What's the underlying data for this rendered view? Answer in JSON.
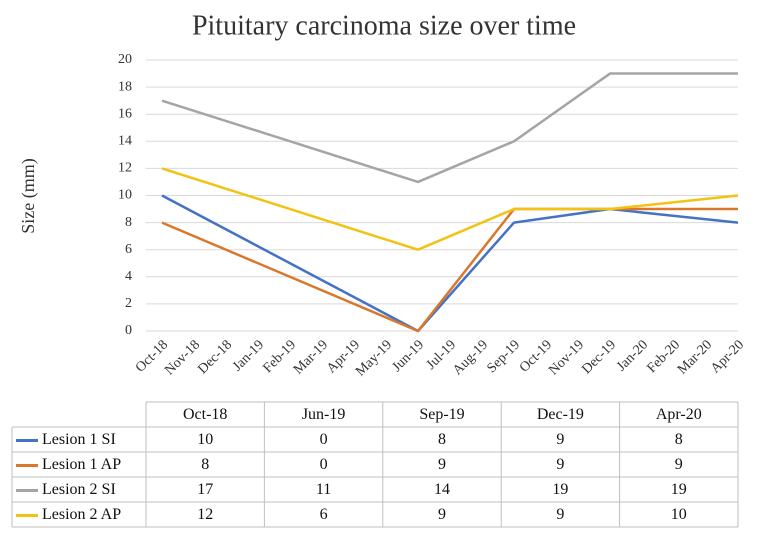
{
  "chart_data": {
    "type": "line",
    "title": "Pituitary carcinoma size over time",
    "y_label": "Size (mm)",
    "xticks": [
      "Oct-18",
      "Nov-18",
      "Dec-18",
      "Jan-19",
      "Feb-19",
      "Mar-19",
      "Apr-19",
      "May-19",
      "Jun-19",
      "Jul-19",
      "Aug-19",
      "Sep-19",
      "Oct-19",
      "Nov-19",
      "Dec-19",
      "Jan-20",
      "Feb-20",
      "Mar-20",
      "Apr-20"
    ],
    "x": [
      "Oct-18",
      "Jun-19",
      "Sep-19",
      "Dec-19",
      "Apr-20"
    ],
    "series": [
      {
        "name": "Lesion 1 SI",
        "color": "#4472c4",
        "values": [
          10,
          0,
          8,
          9,
          8
        ]
      },
      {
        "name": "Lesion 1 AP",
        "color": "#d9782d",
        "values": [
          8,
          0,
          9,
          9,
          9
        ]
      },
      {
        "name": "Lesion 2 SI",
        "color": "#a5a5a5",
        "values": [
          17,
          11,
          14,
          19,
          19
        ]
      },
      {
        "name": "Lesion 2 AP",
        "color": "#f2c314",
        "values": [
          12,
          6,
          9,
          9,
          10
        ]
      }
    ],
    "ylim": [
      0,
      20
    ],
    "yticks": [
      0,
      2,
      4,
      6,
      8,
      10,
      12,
      14,
      16,
      18,
      20
    ],
    "grid": true
  }
}
